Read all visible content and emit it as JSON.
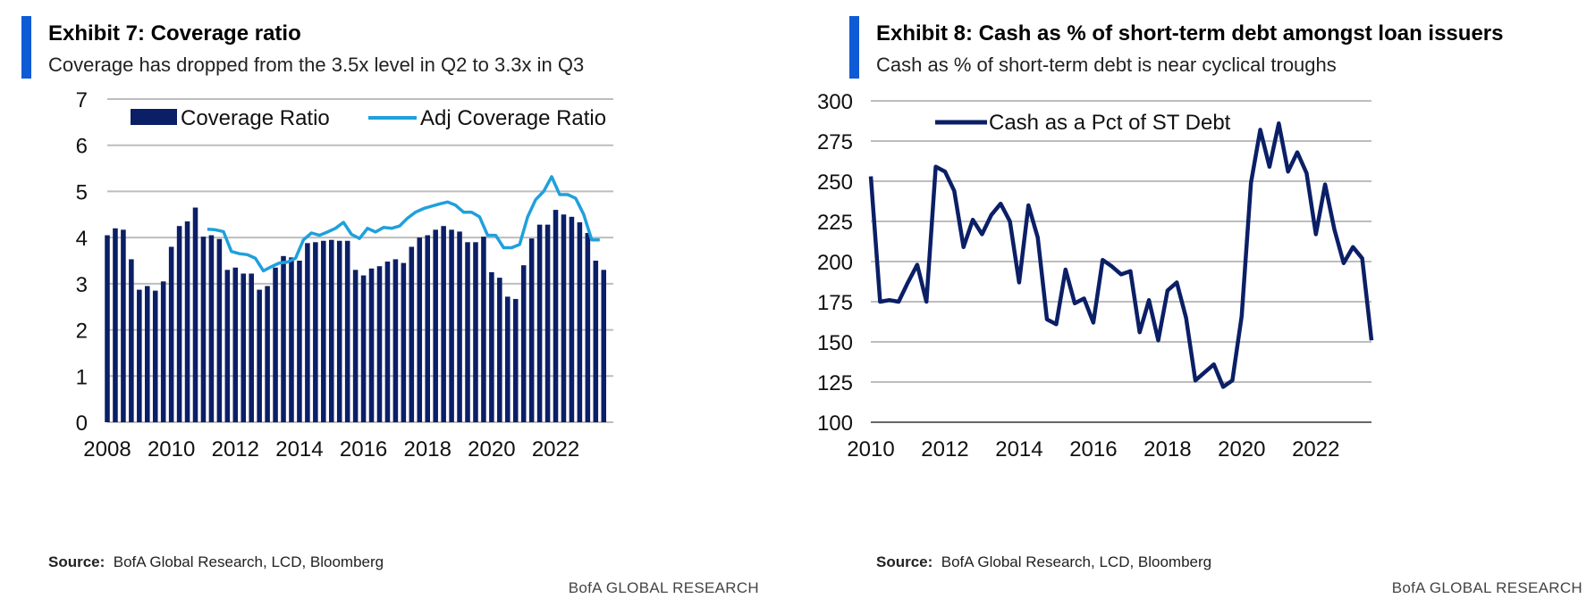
{
  "exhibits": [
    {
      "title": "Exhibit 7: Coverage ratio",
      "subtitle": "Coverage has dropped from the 3.5x level in Q2 to 3.3x in Q3",
      "source_label": "Source:",
      "source_text": "BofA Global Research, LCD, Bloomberg",
      "footer": "BofA GLOBAL RESEARCH"
    },
    {
      "title": "Exhibit 8: Cash as % of short-term debt amongst loan issuers",
      "subtitle": "Cash as % of short-term debt is near cyclical troughs",
      "source_label": "Source:",
      "source_text": "BofA Global Research, LCD, Bloomberg",
      "footer": "BofA GLOBAL RESEARCH"
    }
  ],
  "colors": {
    "accent": "#0f5bd6",
    "bar": "#0b1f66",
    "adj_line": "#1fa0dc",
    "line": "#0b1f66",
    "grid": "#bdbdbd"
  },
  "chart_data": [
    {
      "type": "bar",
      "ylim": [
        0,
        7
      ],
      "yticks": [
        0,
        1,
        2,
        3,
        4,
        5,
        6,
        7
      ],
      "xlim": [
        2008,
        2023.8
      ],
      "xticks": [
        2008,
        2010,
        2012,
        2014,
        2016,
        2018,
        2020,
        2022
      ],
      "grid": true,
      "legend_position": "top",
      "series": [
        {
          "name": "Coverage Ratio",
          "type": "bar",
          "x_start": 2008,
          "step": 0.25,
          "values": [
            4.05,
            4.2,
            4.17,
            3.53,
            2.87,
            2.95,
            2.85,
            3.05,
            3.8,
            4.25,
            4.35,
            4.65,
            4.02,
            4.05,
            3.97,
            3.3,
            3.35,
            3.22,
            3.22,
            2.87,
            2.95,
            3.35,
            3.6,
            3.57,
            3.5,
            3.88,
            3.9,
            3.93,
            3.95,
            3.93,
            3.93,
            3.3,
            3.18,
            3.33,
            3.38,
            3.48,
            3.53,
            3.45,
            3.8,
            4.0,
            4.05,
            4.17,
            4.25,
            4.17,
            4.13,
            3.9,
            3.9,
            4.02,
            3.25,
            3.13,
            2.72,
            2.67,
            3.4,
            3.98,
            4.28,
            4.28,
            4.6,
            4.5,
            4.45,
            4.33,
            4.1,
            3.5,
            3.3
          ]
        },
        {
          "name": "Adj Coverage Ratio",
          "type": "line",
          "x_start": 2011.125,
          "step": 0.25,
          "values": [
            4.18,
            4.17,
            4.13,
            3.7,
            3.65,
            3.63,
            3.55,
            3.28,
            3.37,
            3.45,
            3.47,
            3.55,
            3.95,
            4.1,
            4.05,
            4.12,
            4.2,
            4.33,
            4.07,
            3.98,
            4.2,
            4.12,
            4.22,
            4.2,
            4.25,
            4.42,
            4.55,
            4.63,
            4.68,
            4.73,
            4.77,
            4.7,
            4.55,
            4.55,
            4.45,
            4.05,
            4.05,
            3.78,
            3.78,
            3.85,
            4.45,
            4.82,
            5.0,
            5.32,
            4.93,
            4.93,
            4.85,
            4.5,
            3.95,
            3.95
          ]
        }
      ]
    },
    {
      "type": "line",
      "ylim": [
        100,
        300
      ],
      "yticks": [
        100,
        125,
        150,
        175,
        200,
        225,
        250,
        275,
        300
      ],
      "xlim": [
        2010,
        2023.5
      ],
      "xticks": [
        2010,
        2012,
        2014,
        2016,
        2018,
        2020,
        2022
      ],
      "grid": true,
      "legend_position": "top-left",
      "series": [
        {
          "name": "Cash as a Pct of ST Debt",
          "x_start": 2010,
          "step": 0.25,
          "values": [
            253,
            175,
            176,
            175,
            187,
            198,
            175,
            259,
            256,
            244,
            209,
            226,
            217,
            229,
            236,
            225,
            187,
            235,
            215,
            164,
            161,
            195,
            174,
            177,
            162,
            201,
            197,
            192,
            194,
            156,
            176,
            151,
            182,
            187,
            165,
            126,
            131,
            136,
            122,
            126,
            166,
            249,
            282,
            259,
            286,
            256,
            268,
            255,
            217,
            248,
            220,
            199,
            209,
            202,
            151
          ]
        }
      ]
    }
  ]
}
